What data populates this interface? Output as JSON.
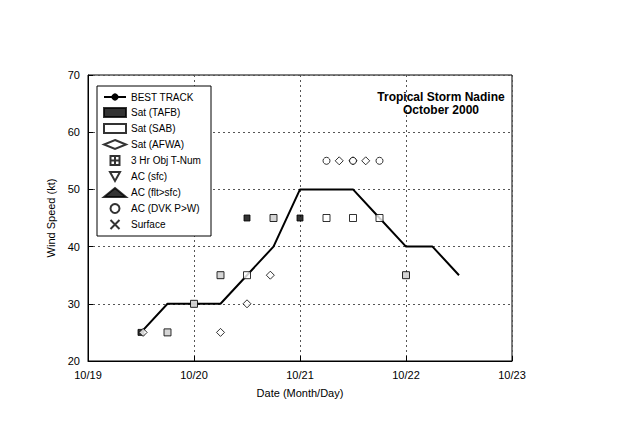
{
  "chart_data": {
    "type": "scatter",
    "title": "Tropical Storm Nadine",
    "subtitle": "October 2000",
    "x_label": "Date (Month/Day)",
    "y_label": "Wind Speed (kt)",
    "xlim": [
      19,
      23
    ],
    "xticks": [
      {
        "value": 19,
        "label": "10/19"
      },
      {
        "value": 20,
        "label": "10/20"
      },
      {
        "value": 21,
        "label": "10/21"
      },
      {
        "value": 22,
        "label": "10/22"
      },
      {
        "value": 23,
        "label": "10/23"
      }
    ],
    "ylim": [
      20,
      70
    ],
    "yticks": [
      20,
      30,
      40,
      50,
      60,
      70
    ],
    "grid": true,
    "legend": "upper left",
    "series": [
      {
        "name": "BEST TRACK",
        "type": "line",
        "line_style": "solid",
        "color": "#000000",
        "x": [
          19.5,
          19.75,
          20.0,
          20.25,
          20.5,
          20.75,
          21.0,
          21.25,
          21.5,
          21.75,
          22.0,
          22.25,
          22.5
        ],
        "values": [
          25,
          30,
          30,
          30,
          35,
          40,
          50,
          50,
          50,
          45,
          40,
          40,
          35
        ]
      },
      {
        "name": "Sat (TAFB)",
        "type": "scatter",
        "marker": "square",
        "color": "#000000",
        "x": [
          19.5,
          19.75,
          20.0,
          20.25,
          20.5,
          20.75,
          21.0,
          22.0
        ],
        "values": [
          25,
          25,
          30,
          35,
          45,
          45,
          45,
          35
        ]
      },
      {
        "name": "Sat (SAB)",
        "type": "scatter",
        "marker": "square_open",
        "color": "#000000",
        "x": [
          19.75,
          20.0,
          20.25,
          20.5,
          20.75,
          21.25,
          21.5,
          21.75,
          22.0
        ],
        "values": [
          25,
          30,
          35,
          35,
          45,
          45,
          45,
          45,
          35
        ]
      },
      {
        "name": "Sat (AFWA)",
        "type": "scatter",
        "marker": "diamond_open",
        "color": "#000000",
        "x": [
          19.52,
          20.25,
          20.5,
          20.72,
          21.37,
          21.5,
          21.62
        ],
        "values": [
          25,
          25,
          30,
          35,
          55,
          55,
          55
        ]
      },
      {
        "name": "3 Hr Obj T-Num",
        "type": "scatter",
        "marker": "square_plus",
        "color": "#000000",
        "x": [],
        "values": []
      },
      {
        "name": "AC (sfc)",
        "type": "scatter",
        "marker": "triangle_down_open",
        "color": "#000000",
        "x": [],
        "values": []
      },
      {
        "name": "AC (flt>sfc)",
        "type": "scatter",
        "marker": "triangle_up",
        "color": "#000000",
        "x": [],
        "values": []
      },
      {
        "name": "AC (DVK P>W)",
        "type": "scatter",
        "marker": "circle_open",
        "color": "#000000",
        "x": [
          21.25,
          21.5,
          21.75
        ],
        "values": [
          55,
          55,
          55
        ]
      },
      {
        "name": "Surface",
        "type": "scatter",
        "marker": "x",
        "color": "#000000",
        "x": [],
        "values": []
      }
    ]
  }
}
